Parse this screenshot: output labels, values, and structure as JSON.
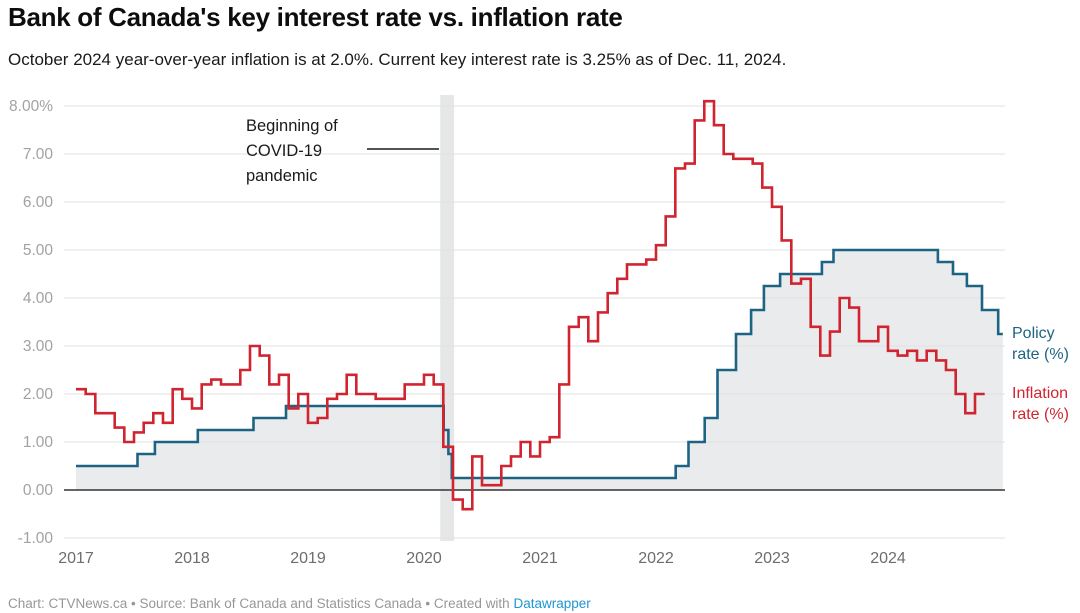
{
  "header": {
    "title": "Bank of Canada's key interest rate vs. inflation rate",
    "subtitle": "October 2024 year-over-year inflation is at 2.0%. Current key interest rate is 3.25% as of Dec. 11, 2024."
  },
  "footer": {
    "text": "Chart: CTVNews.ca • Source: Bank of Canada and Statistics Canada • Created with ",
    "link_label": "Datawrapper"
  },
  "colors": {
    "policy_line": "#1d6484",
    "inflation_line": "#d02530",
    "policy_area_fill": "#e9ebec",
    "covid_band": "#e3e4e5",
    "gridline": "#e2e2e2",
    "zero_axis": "#333333",
    "y_tick_label": "#a2a2a2",
    "x_tick_label": "#6d6d6d",
    "annotation_text": "#1a1a1a",
    "footer_text": "#979797",
    "link": "#1e96d2"
  },
  "chart_data": {
    "type": "line",
    "step": true,
    "title": "Bank of Canada's key interest rate vs. inflation rate",
    "xlabel": "",
    "ylabel": "",
    "x_range": [
      2017,
      2025.05
    ],
    "ylim": [
      -1,
      8
    ],
    "grid": true,
    "legend_position": "right",
    "y_ticks": [
      {
        "value": 8,
        "label": "8.00%"
      },
      {
        "value": 7,
        "label": "7.00"
      },
      {
        "value": 6,
        "label": "6.00"
      },
      {
        "value": 5,
        "label": "5.00"
      },
      {
        "value": 4,
        "label": "4.00"
      },
      {
        "value": 3,
        "label": "3.00"
      },
      {
        "value": 2,
        "label": "2.00"
      },
      {
        "value": 1,
        "label": "1.00"
      },
      {
        "value": 0,
        "label": "0.00"
      },
      {
        "value": -1,
        "label": "-1.00"
      }
    ],
    "x_ticks": [
      {
        "value": 2017,
        "label": "2017"
      },
      {
        "value": 2018,
        "label": "2018"
      },
      {
        "value": 2019,
        "label": "2019"
      },
      {
        "value": 2020,
        "label": "2020"
      },
      {
        "value": 2021,
        "label": "2021"
      },
      {
        "value": 2022,
        "label": "2022"
      },
      {
        "value": 2023,
        "label": "2023"
      },
      {
        "value": 2024,
        "label": "2024"
      }
    ],
    "annotation": {
      "lines": [
        "Beginning of",
        "COVID-19",
        "pandemic"
      ]
    },
    "covid_band": {
      "from": 2020.14,
      "to": 2020.26
    },
    "series": [
      {
        "name": "Policy rate (%)",
        "label_lines": [
          "Policy",
          "rate (%)"
        ],
        "color": "#1d6484",
        "area_fill": "#e9ebec",
        "x_unit": "decimal_year",
        "points": [
          [
            2017.0,
            0.5
          ],
          [
            2017.53,
            0.75
          ],
          [
            2017.68,
            1.0
          ],
          [
            2018.05,
            1.25
          ],
          [
            2018.53,
            1.5
          ],
          [
            2018.81,
            1.75
          ],
          [
            2020.17,
            1.25
          ],
          [
            2020.21,
            0.75
          ],
          [
            2020.24,
            0.25
          ],
          [
            2022.17,
            0.5
          ],
          [
            2022.28,
            1.0
          ],
          [
            2022.42,
            1.5
          ],
          [
            2022.53,
            2.5
          ],
          [
            2022.69,
            3.25
          ],
          [
            2022.82,
            3.75
          ],
          [
            2022.93,
            4.25
          ],
          [
            2023.07,
            4.5
          ],
          [
            2023.43,
            4.75
          ],
          [
            2023.53,
            5.0
          ],
          [
            2024.43,
            4.75
          ],
          [
            2024.56,
            4.5
          ],
          [
            2024.68,
            4.25
          ],
          [
            2024.81,
            3.75
          ],
          [
            2024.95,
            3.25
          ]
        ],
        "end": 2024.99
      },
      {
        "name": "Inflation rate (%)",
        "label_lines": [
          "Inflation",
          "rate (%)"
        ],
        "color": "#d02530",
        "x_unit": "monthly",
        "start_year": 2017,
        "monthly_values": [
          2.1,
          2.0,
          1.6,
          1.6,
          1.3,
          1.0,
          1.2,
          1.4,
          1.6,
          1.4,
          2.1,
          1.9,
          1.7,
          2.2,
          2.3,
          2.2,
          2.2,
          2.5,
          3.0,
          2.8,
          2.2,
          2.4,
          1.7,
          2.0,
          1.4,
          1.5,
          1.9,
          2.0,
          2.4,
          2.0,
          2.0,
          1.9,
          1.9,
          1.9,
          2.2,
          2.2,
          2.4,
          2.2,
          0.9,
          -0.2,
          -0.4,
          0.7,
          0.1,
          0.1,
          0.5,
          0.7,
          1.0,
          0.7,
          1.0,
          1.1,
          2.2,
          3.4,
          3.6,
          3.1,
          3.7,
          4.1,
          4.4,
          4.7,
          4.7,
          4.8,
          5.1,
          5.7,
          6.7,
          6.8,
          7.7,
          8.1,
          7.6,
          7.0,
          6.9,
          6.9,
          6.8,
          6.3,
          5.9,
          5.2,
          4.3,
          4.4,
          3.4,
          2.8,
          3.3,
          4.0,
          3.8,
          3.1,
          3.1,
          3.4,
          2.9,
          2.8,
          2.9,
          2.7,
          2.9,
          2.7,
          2.5,
          2.0,
          1.6,
          2.0
        ]
      }
    ]
  }
}
